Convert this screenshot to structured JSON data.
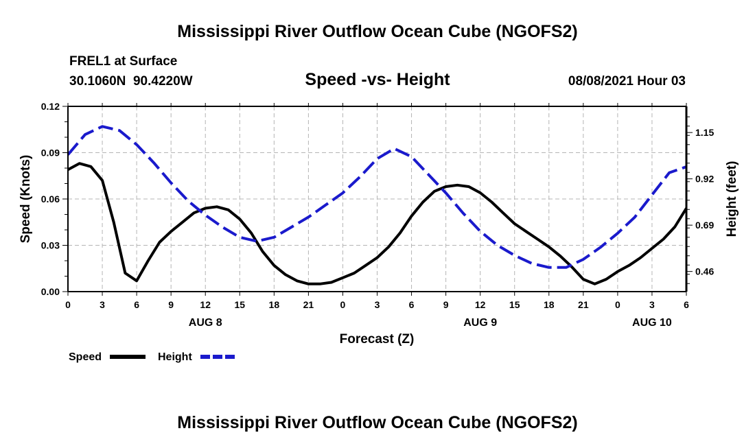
{
  "page": {
    "top_title": "Mississippi River Outflow Ocean Cube (NGOFS2)",
    "bottom_title": "Mississippi River Outflow Ocean Cube (NGOFS2)",
    "station": "FREL1 at Surface",
    "coords": "30.1060N  90.4220W",
    "subtitle": "Speed -vs- Height",
    "datetime": "08/08/2021 Hour 03"
  },
  "colors": {
    "speed": "#000000",
    "height": "#1a1acc",
    "grid": "#b4b4b4"
  },
  "chart_data": {
    "type": "line",
    "title": "Speed -vs- Height",
    "xlabel": "Forecast (Z)",
    "ylabel": "Speed (Knots)",
    "y2label": "Height (feet)",
    "xlim": [
      0,
      54
    ],
    "ylim": [
      0,
      0.12
    ],
    "y2lim": [
      0.36,
      1.28
    ],
    "x_ticks": [
      0,
      3,
      6,
      9,
      12,
      15,
      18,
      21,
      24,
      27,
      30,
      33,
      36,
      39,
      42,
      45,
      48,
      51,
      54
    ],
    "x_tick_labels": [
      "0",
      "3",
      "6",
      "9",
      "12",
      "15",
      "18",
      "21",
      "0",
      "3",
      "6",
      "9",
      "12",
      "15",
      "18",
      "21",
      "0",
      "3",
      "6"
    ],
    "y_ticks": [
      0,
      0.03,
      0.06,
      0.09,
      0.12
    ],
    "y_tick_labels": [
      "0.00",
      "0.03",
      "0.06",
      "0.09",
      "0.12"
    ],
    "y2_ticks": [
      0.46,
      0.69,
      0.92,
      1.15
    ],
    "y2_tick_labels": [
      "0.46",
      "0.69",
      "0.92",
      "1.15"
    ],
    "date_labels": [
      {
        "x": 12,
        "text": "AUG 8"
      },
      {
        "x": 36,
        "text": "AUG 9"
      },
      {
        "x": 51,
        "text": "AUG 10"
      }
    ],
    "series": [
      {
        "name": "Speed",
        "axis": "left",
        "style": "solid",
        "x": [
          0,
          1,
          2,
          3,
          4,
          5,
          6,
          7,
          8,
          9,
          10,
          11,
          12,
          13,
          14,
          15,
          16,
          17,
          18,
          19,
          20,
          21,
          22,
          23,
          24,
          25,
          26,
          27,
          28,
          29,
          30,
          31,
          32,
          33,
          34,
          35,
          36,
          37,
          38,
          39,
          40,
          41,
          42,
          43,
          44,
          45,
          46,
          47,
          48,
          49,
          50,
          51,
          52,
          53,
          54
        ],
        "values": [
          0.079,
          0.083,
          0.081,
          0.072,
          0.045,
          0.012,
          0.007,
          0.02,
          0.032,
          0.039,
          0.045,
          0.051,
          0.054,
          0.055,
          0.053,
          0.047,
          0.038,
          0.026,
          0.017,
          0.011,
          0.007,
          0.005,
          0.005,
          0.006,
          0.009,
          0.012,
          0.017,
          0.022,
          0.029,
          0.038,
          0.049,
          0.058,
          0.065,
          0.068,
          0.069,
          0.068,
          0.064,
          0.058,
          0.051,
          0.044,
          0.039,
          0.034,
          0.029,
          0.023,
          0.016,
          0.008,
          0.005,
          0.008,
          0.013,
          0.017,
          0.022,
          0.028,
          0.034,
          0.042,
          0.054
        ]
      },
      {
        "name": "Height",
        "axis": "right",
        "style": "dashed",
        "x": [
          0,
          1.5,
          3,
          4.5,
          6,
          7.5,
          9,
          10.5,
          12,
          13.5,
          15,
          16.5,
          18,
          19.5,
          21,
          22.5,
          24,
          25.5,
          27,
          28.5,
          30,
          31.5,
          33,
          34.5,
          36,
          37.5,
          39,
          40.5,
          42,
          43.5,
          45,
          46.5,
          48,
          49.5,
          51,
          52.5,
          54
        ],
        "values": [
          1.04,
          1.14,
          1.18,
          1.16,
          1.09,
          1.0,
          0.9,
          0.81,
          0.74,
          0.68,
          0.63,
          0.61,
          0.63,
          0.68,
          0.73,
          0.79,
          0.85,
          0.93,
          1.02,
          1.07,
          1.03,
          0.94,
          0.85,
          0.75,
          0.66,
          0.59,
          0.54,
          0.5,
          0.48,
          0.48,
          0.52,
          0.58,
          0.65,
          0.73,
          0.84,
          0.95,
          0.98
        ]
      }
    ],
    "legend": {
      "position": "bottom-left",
      "entries": [
        "Speed",
        "Height"
      ]
    },
    "grid": true
  }
}
